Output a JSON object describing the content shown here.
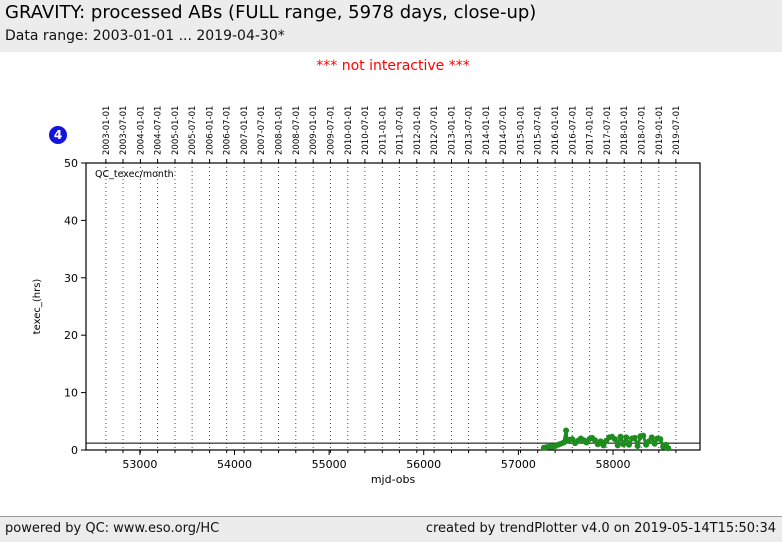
{
  "header": {
    "title": "GRAVITY: processed ABs (FULL range, 5978 days, close-up)",
    "data_range": "Data range: 2003-01-01 ... 2019-04-30*"
  },
  "notice": "*** not interactive ***",
  "badge": "4",
  "footer": {
    "left": "powered by QC: www.eso.org/HC",
    "right": "created by trendPlotter v4.0 on 2019-05-14T15:50:34"
  },
  "colors": {
    "panel_bg": "#ececec",
    "notice_red": "#ff0000",
    "badge_blue": "#1414dd",
    "series_green": "#1e8c1e",
    "axis_black": "#000000"
  },
  "chart_data": {
    "type": "line",
    "title": "",
    "legend": "QC_texec/month",
    "legend_position": "upper-left",
    "xlabel": "mjd-obs",
    "ylabel": "texec_(hrs)",
    "xlim": [
      52430,
      58920
    ],
    "ylim": [
      0,
      50
    ],
    "grid": "vertical-dotted",
    "x_ticks": [
      53000,
      54000,
      55000,
      56000,
      57000,
      58000
    ],
    "y_ticks": [
      0,
      10,
      20,
      30,
      40,
      50
    ],
    "reference_line_y": 1.2,
    "date_ticks": [
      {
        "label": "2003-01-01",
        "mjd": 52640
      },
      {
        "label": "2003-07-01",
        "mjd": 52821
      },
      {
        "label": "2004-01-01",
        "mjd": 53005
      },
      {
        "label": "2004-07-01",
        "mjd": 53187
      },
      {
        "label": "2005-01-01",
        "mjd": 53371
      },
      {
        "label": "2005-07-01",
        "mjd": 53552
      },
      {
        "label": "2006-01-01",
        "mjd": 53736
      },
      {
        "label": "2006-07-01",
        "mjd": 53917
      },
      {
        "label": "2007-01-01",
        "mjd": 54101
      },
      {
        "label": "2007-07-01",
        "mjd": 54282
      },
      {
        "label": "2008-01-01",
        "mjd": 54466
      },
      {
        "label": "2008-07-01",
        "mjd": 54648
      },
      {
        "label": "2009-01-01",
        "mjd": 54832
      },
      {
        "label": "2009-07-01",
        "mjd": 55013
      },
      {
        "label": "2010-01-01",
        "mjd": 55197
      },
      {
        "label": "2010-07-01",
        "mjd": 55378
      },
      {
        "label": "2011-01-01",
        "mjd": 55562
      },
      {
        "label": "2011-07-01",
        "mjd": 55743
      },
      {
        "label": "2012-01-01",
        "mjd": 55927
      },
      {
        "label": "2012-07-01",
        "mjd": 56109
      },
      {
        "label": "2013-01-01",
        "mjd": 56293
      },
      {
        "label": "2013-07-01",
        "mjd": 56474
      },
      {
        "label": "2014-01-01",
        "mjd": 56658
      },
      {
        "label": "2014-07-01",
        "mjd": 56839
      },
      {
        "label": "2015-01-01",
        "mjd": 57023
      },
      {
        "label": "2015-07-01",
        "mjd": 57204
      },
      {
        "label": "2016-01-01",
        "mjd": 57388
      },
      {
        "label": "2016-07-01",
        "mjd": 57570
      },
      {
        "label": "2017-01-01",
        "mjd": 57754
      },
      {
        "label": "2017-07-01",
        "mjd": 57935
      },
      {
        "label": "2018-01-01",
        "mjd": 58119
      },
      {
        "label": "2018-07-01",
        "mjd": 58300
      },
      {
        "label": "2019-01-01",
        "mjd": 58484
      },
      {
        "label": "2019-07-01",
        "mjd": 58665
      }
    ],
    "series": [
      {
        "name": "QC_texec/month",
        "color": "#1e8c1e",
        "marker": "circle",
        "x": [
          57270,
          57300,
          57330,
          57360,
          57390,
          57420,
          57450,
          57480,
          57505,
          57515,
          57540,
          57570,
          57600,
          57630,
          57660,
          57690,
          57720,
          57750,
          57780,
          57810,
          57840,
          57870,
          57900,
          57930,
          57960,
          57990,
          58020,
          58050,
          58080,
          58110,
          58140,
          58170,
          58200,
          58230,
          58260,
          58290,
          58320,
          58350,
          58380,
          58410,
          58440,
          58470,
          58500,
          58530,
          58560,
          58585
        ],
        "y": [
          0.4,
          0.5,
          0.6,
          0.6,
          0.7,
          0.9,
          1.1,
          1.3,
          3.4,
          1.6,
          1.8,
          1.9,
          1.2,
          1.6,
          2.0,
          1.7,
          1.3,
          1.9,
          2.1,
          1.7,
          1.0,
          1.5,
          0.8,
          1.6,
          2.2,
          2.3,
          1.9,
          0.8,
          2.3,
          1.0,
          2.2,
          0.9,
          2.0,
          2.1,
          0.7,
          2.4,
          2.5,
          0.9,
          1.5,
          2.2,
          1.1,
          2.0,
          1.9,
          0.6,
          0.9,
          0.3
        ]
      }
    ]
  }
}
